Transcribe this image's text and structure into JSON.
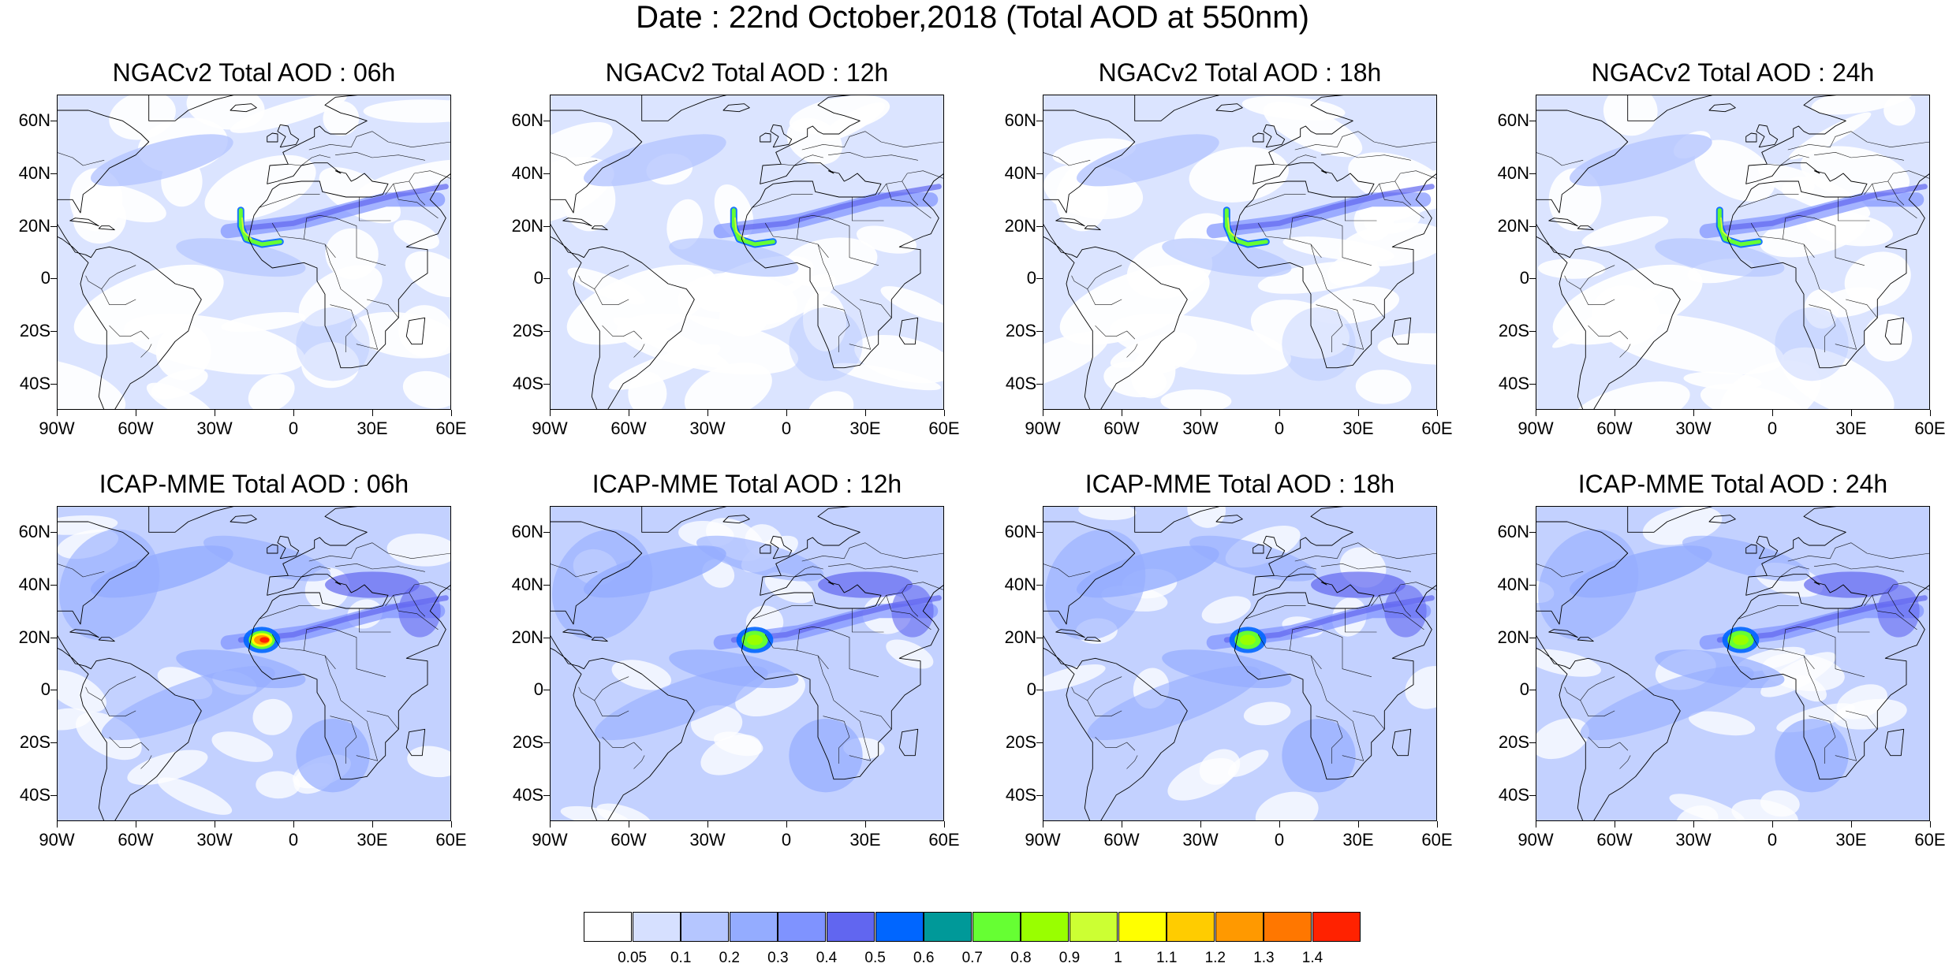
{
  "title": "Date : 22nd October,2018 (Total AOD at 550nm)",
  "axes": {
    "lat_labels": [
      "60N",
      "40N",
      "20N",
      "0",
      "20S",
      "40S"
    ],
    "lon_labels": [
      "90W",
      "60W",
      "30W",
      "0",
      "30E",
      "60E"
    ],
    "lat_values": [
      60,
      40,
      20,
      0,
      -20,
      -40
    ],
    "lon_values": [
      -90,
      -60,
      -30,
      0,
      30,
      60
    ],
    "lat_range": [
      -50,
      70
    ],
    "lon_range": [
      -90,
      60
    ]
  },
  "panels": [
    {
      "model": "NGACv2",
      "title": "NGACv2 Total AOD : 06h",
      "hour": 6,
      "dust_peak_aod": 0.8
    },
    {
      "model": "NGACv2",
      "title": "NGACv2 Total AOD : 12h",
      "hour": 12,
      "dust_peak_aod": 0.8
    },
    {
      "model": "NGACv2",
      "title": "NGACv2 Total AOD : 18h",
      "hour": 18,
      "dust_peak_aod": 0.8
    },
    {
      "model": "NGACv2",
      "title": "NGACv2 Total AOD : 24h",
      "hour": 24,
      "dust_peak_aod": 0.8
    },
    {
      "model": "ICAP-MME",
      "title": "ICAP-MME Total AOD : 06h",
      "hour": 6,
      "dust_peak_aod": 1.4
    },
    {
      "model": "ICAP-MME",
      "title": "ICAP-MME Total AOD : 12h",
      "hour": 12,
      "dust_peak_aod": 0.8
    },
    {
      "model": "ICAP-MME",
      "title": "ICAP-MME Total AOD : 18h",
      "hour": 18,
      "dust_peak_aod": 0.8
    },
    {
      "model": "ICAP-MME",
      "title": "ICAP-MME Total AOD : 24h",
      "hour": 24,
      "dust_peak_aod": 0.8
    }
  ],
  "colorbar": {
    "labels": [
      "0.05",
      "0.1",
      "0.2",
      "0.3",
      "0.4",
      "0.5",
      "0.6",
      "0.7",
      "0.8",
      "0.9",
      "1",
      "1.1",
      "1.2",
      "1.3",
      "1.4"
    ],
    "colors": [
      "#ffffff",
      "#d6e0ff",
      "#b5c6ff",
      "#94acff",
      "#7f93ff",
      "#6166f0",
      "#0066ff",
      "#009999",
      "#66ff33",
      "#99ff00",
      "#ccff33",
      "#ffff00",
      "#ffcc00",
      "#ff9900",
      "#ff7700",
      "#ff2200"
    ]
  }
}
